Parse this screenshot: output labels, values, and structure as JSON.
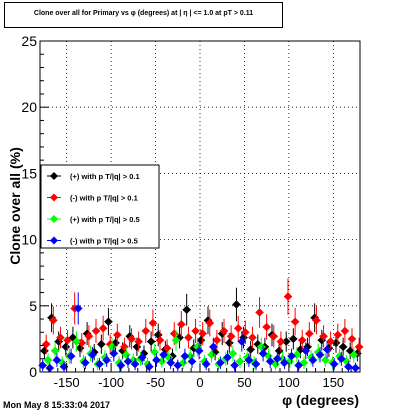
{
  "title": "Clone  over all for Primary vs φ (degrees) at | η | <= 1.0 at pT > 0.11",
  "timestamp": "Mon May  8 15:33:04 2017",
  "chart_data": {
    "type": "scatter",
    "xlabel": "φ (degrees)",
    "ylabel": "Clone  over all (%)",
    "xlim": [
      -180,
      180
    ],
    "ylim": [
      0,
      25
    ],
    "xticks": [
      -150,
      -100,
      -50,
      0,
      50,
      100,
      150
    ],
    "yticks": [
      0,
      5,
      10,
      15,
      20,
      25
    ],
    "grid": true,
    "legend_position": "middle-left",
    "series": [
      {
        "name": "(+) with p T/|q| > 0.1",
        "color": "#000000",
        "x": [
          -175,
          -167,
          -159,
          -151,
          -143,
          -135,
          -127,
          -119,
          -111,
          -103,
          -95,
          -87,
          -79,
          -71,
          -63,
          -55,
          -47,
          -39,
          -31,
          -23,
          -15,
          -7,
          1,
          9,
          17,
          25,
          33,
          41,
          49,
          57,
          65,
          73,
          81,
          89,
          97,
          105,
          113,
          121,
          129,
          137,
          145,
          153,
          161,
          169,
          177
        ],
        "y": [
          1.6,
          4.1,
          2.3,
          1.9,
          2.6,
          1.8,
          2.9,
          1.5,
          2.1,
          3.8,
          2.2,
          1.6,
          2.7,
          1.9,
          1.4,
          2.3,
          2.8,
          1.7,
          1.2,
          2.6,
          4.7,
          1.8,
          2.4,
          3.9,
          1.5,
          2.9,
          2.2,
          5.1,
          2.6,
          1.7,
          2.1,
          1.9,
          2.8,
          1.6,
          2.3,
          2.5,
          1.7,
          1.9,
          4.1,
          2.4,
          1.8,
          2.2,
          1.9,
          1.6,
          1.4
        ]
      },
      {
        "name": "(-) with p T/|q| > 0.1",
        "color": "#ff0000",
        "x": [
          -173,
          -165,
          -157,
          -149,
          -141,
          -133,
          -125,
          -117,
          -109,
          -101,
          -93,
          -85,
          -77,
          -69,
          -61,
          -53,
          -45,
          -37,
          -29,
          -21,
          -13,
          -5,
          3,
          11,
          19,
          27,
          35,
          43,
          51,
          59,
          67,
          75,
          83,
          91,
          99,
          107,
          115,
          123,
          131,
          139,
          147,
          155,
          163,
          171,
          179
        ],
        "y": [
          2.1,
          3.9,
          2.6,
          2.4,
          4.8,
          2.2,
          2.7,
          3.1,
          3.3,
          2.1,
          2.8,
          1.9,
          2.5,
          2.3,
          3.1,
          3.7,
          2.4,
          1.8,
          2.9,
          3.6,
          2.6,
          3.1,
          2.9,
          3.7,
          2.4,
          3.1,
          2.7,
          3.3,
          3.0,
          2.6,
          4.5,
          3.4,
          2.7,
          2.3,
          5.7,
          3.8,
          2.4,
          2.9,
          3.9,
          2.7,
          2.3,
          2.8,
          3.1,
          2.5,
          1.9
        ]
      },
      {
        "name": "(+) with p T/|q| > 0.5",
        "color": "#00ff00",
        "x": [
          -171,
          -163,
          -155,
          -147,
          -139,
          -131,
          -123,
          -115,
          -107,
          -99,
          -91,
          -83,
          -75,
          -67,
          -59,
          -51,
          -43,
          -35,
          -27,
          -19,
          -11,
          -3,
          5,
          13,
          21,
          29,
          37,
          45,
          53,
          61,
          69,
          77,
          85,
          93,
          101,
          109,
          117,
          125,
          133,
          141,
          149,
          157,
          165,
          173
        ],
        "y": [
          0.9,
          1.6,
          0.7,
          1.2,
          2.3,
          0.8,
          1.4,
          0.6,
          1.1,
          1.9,
          0.7,
          1.3,
          0.9,
          1.0,
          0.6,
          1.5,
          0.8,
          1.1,
          2.4,
          0.7,
          1.2,
          1.9,
          0.8,
          1.3,
          0.6,
          1.0,
          1.4,
          0.8,
          1.1,
          0.7,
          1.9,
          1.2,
          0.6,
          1.0,
          0.8,
          1.3,
          0.7,
          1.1,
          1.5,
          0.9,
          0.7,
          1.2,
          0.8,
          1.3
        ]
      },
      {
        "name": "(-) with p T/|q| > 0.5",
        "color": "#0000ff",
        "x": [
          -177,
          -169,
          -161,
          -153,
          -145,
          -137,
          -129,
          -121,
          -113,
          -105,
          -97,
          -89,
          -81,
          -73,
          -65,
          -57,
          -49,
          -41,
          -33,
          -25,
          -17,
          -9,
          -1,
          7,
          15,
          23,
          31,
          39,
          47,
          55,
          63,
          71,
          79,
          87,
          95,
          103,
          111,
          119,
          127,
          135,
          143,
          151,
          159,
          167,
          175
        ],
        "y": [
          0.5,
          0.3,
          0.9,
          0.4,
          1.2,
          4.8,
          0.7,
          1.3,
          0.6,
          0.9,
          1.4,
          0.5,
          0.8,
          0.6,
          1.1,
          0.4,
          0.9,
          1.3,
          0.7,
          0.5,
          1.2,
          0.8,
          1.6,
          0.6,
          1.9,
          0.7,
          1.1,
          0.5,
          2.3,
          0.9,
          0.6,
          1.4,
          0.8,
          1.0,
          0.7,
          1.2,
          0.5,
          1.6,
          0.9,
          1.3,
          1.7,
          0.6,
          1.0,
          0.4,
          0.3
        ]
      }
    ]
  }
}
